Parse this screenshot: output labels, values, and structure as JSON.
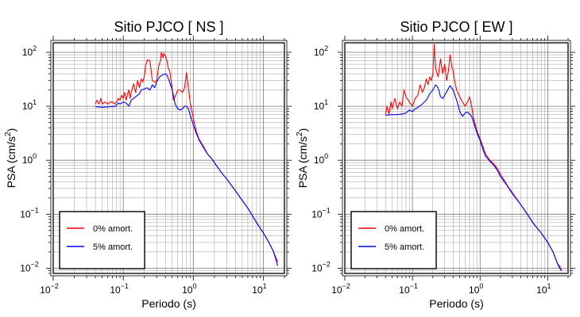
{
  "chart_data": [
    {
      "type": "line",
      "title": "Sitio PJCO [ NS ]",
      "xlabel": "Periodo (s)",
      "ylabel_main": "PSA (cm/s",
      "ylabel_sup": "2",
      "ylabel_tail": ")",
      "xscale": "log",
      "yscale": "log",
      "xlim": [
        0.01,
        20
      ],
      "ylim": [
        0.008,
        150
      ],
      "grid": true,
      "legend_position": "bottom-left",
      "x_ticks": [
        {
          "base": "10",
          "exp": "−2"
        },
        {
          "base": "10",
          "exp": "−1"
        },
        {
          "base": "10",
          "exp": "0"
        },
        {
          "base": "10",
          "exp": "1"
        }
      ],
      "y_ticks": [
        {
          "base": "10",
          "exp": "−2"
        },
        {
          "base": "10",
          "exp": "−1"
        },
        {
          "base": "10",
          "exp": "0"
        },
        {
          "base": "10",
          "exp": "1"
        },
        {
          "base": "10",
          "exp": "2"
        }
      ],
      "series": [
        {
          "name": "0% amort.",
          "color": "#ff0000",
          "points": [
            [
              0.04,
              11
            ],
            [
              0.042,
              13
            ],
            [
              0.045,
              11
            ],
            [
              0.048,
              14
            ],
            [
              0.05,
              11
            ],
            [
              0.055,
              12
            ],
            [
              0.06,
              11
            ],
            [
              0.065,
              12
            ],
            [
              0.07,
              12
            ],
            [
              0.075,
              11
            ],
            [
              0.08,
              12
            ],
            [
              0.085,
              14
            ],
            [
              0.09,
              13
            ],
            [
              0.095,
              16
            ],
            [
              0.1,
              14
            ],
            [
              0.105,
              18
            ],
            [
              0.11,
              13
            ],
            [
              0.115,
              17
            ],
            [
              0.12,
              20
            ],
            [
              0.125,
              14
            ],
            [
              0.13,
              18
            ],
            [
              0.14,
              26
            ],
            [
              0.15,
              18
            ],
            [
              0.16,
              30
            ],
            [
              0.17,
              22
            ],
            [
              0.18,
              32
            ],
            [
              0.19,
              28
            ],
            [
              0.2,
              36
            ],
            [
              0.21,
              58
            ],
            [
              0.22,
              72
            ],
            [
              0.24,
              70
            ],
            [
              0.25,
              45
            ],
            [
              0.26,
              30
            ],
            [
              0.28,
              28
            ],
            [
              0.3,
              30
            ],
            [
              0.32,
              55
            ],
            [
              0.34,
              70
            ],
            [
              0.35,
              100
            ],
            [
              0.37,
              80
            ],
            [
              0.38,
              95
            ],
            [
              0.4,
              85
            ],
            [
              0.42,
              70
            ],
            [
              0.44,
              50
            ],
            [
              0.46,
              45
            ],
            [
              0.48,
              30
            ],
            [
              0.5,
              20
            ],
            [
              0.52,
              13
            ],
            [
              0.55,
              15
            ],
            [
              0.6,
              20
            ],
            [
              0.65,
              20
            ],
            [
              0.7,
              18
            ],
            [
              0.75,
              22
            ],
            [
              0.8,
              42
            ],
            [
              0.85,
              22
            ],
            [
              0.9,
              12
            ],
            [
              1.0,
              6
            ],
            [
              1.1,
              3.5
            ],
            [
              1.2,
              2.5
            ],
            [
              1.4,
              1.8
            ],
            [
              1.6,
              1.3
            ],
            [
              1.8,
              1.1
            ],
            [
              2.0,
              0.9
            ],
            [
              2.5,
              0.6
            ],
            [
              3,
              0.45
            ],
            [
              4,
              0.27
            ],
            [
              5,
              0.18
            ],
            [
              6,
              0.13
            ],
            [
              8,
              0.07
            ],
            [
              10,
              0.045
            ],
            [
              12,
              0.03
            ],
            [
              14,
              0.02
            ],
            [
              15,
              0.016
            ],
            [
              16,
              0.013
            ]
          ]
        },
        {
          "name": "5% amort.",
          "color": "#0000ff",
          "points": [
            [
              0.04,
              9.8
            ],
            [
              0.05,
              9.6
            ],
            [
              0.06,
              9.7
            ],
            [
              0.07,
              10
            ],
            [
              0.075,
              9.8
            ],
            [
              0.08,
              10.5
            ],
            [
              0.085,
              11.5
            ],
            [
              0.09,
              11
            ],
            [
              0.1,
              12
            ],
            [
              0.11,
              11.5
            ],
            [
              0.12,
              10
            ],
            [
              0.13,
              13
            ],
            [
              0.14,
              14
            ],
            [
              0.15,
              15
            ],
            [
              0.16,
              16
            ],
            [
              0.17,
              17
            ],
            [
              0.18,
              20
            ],
            [
              0.2,
              21
            ],
            [
              0.22,
              22
            ],
            [
              0.24,
              20
            ],
            [
              0.26,
              25
            ],
            [
              0.28,
              22
            ],
            [
              0.3,
              28
            ],
            [
              0.33,
              35
            ],
            [
              0.36,
              38
            ],
            [
              0.4,
              40
            ],
            [
              0.42,
              38
            ],
            [
              0.45,
              30
            ],
            [
              0.5,
              20
            ],
            [
              0.52,
              16
            ],
            [
              0.55,
              11
            ],
            [
              0.6,
              9
            ],
            [
              0.65,
              8.5
            ],
            [
              0.7,
              9
            ],
            [
              0.75,
              10
            ],
            [
              0.8,
              10
            ],
            [
              0.85,
              9
            ],
            [
              0.9,
              7
            ],
            [
              1.0,
              4.5
            ],
            [
              1.1,
              3.2
            ],
            [
              1.2,
              2.4
            ],
            [
              1.4,
              1.7
            ],
            [
              1.6,
              1.3
            ],
            [
              1.8,
              1.1
            ],
            [
              2.0,
              0.9
            ],
            [
              2.5,
              0.6
            ],
            [
              3,
              0.45
            ],
            [
              4,
              0.27
            ],
            [
              5,
              0.18
            ],
            [
              6,
              0.13
            ],
            [
              8,
              0.07
            ],
            [
              10,
              0.045
            ],
            [
              12,
              0.03
            ],
            [
              14,
              0.02
            ],
            [
              15,
              0.015
            ],
            [
              16,
              0.011
            ]
          ]
        }
      ]
    },
    {
      "type": "line",
      "title": "Sitio PJCO [ EW ]",
      "xlabel": "Periodo (s)",
      "ylabel_main": "PSA (cm/s",
      "ylabel_sup": "2",
      "ylabel_tail": ")",
      "xscale": "log",
      "yscale": "log",
      "xlim": [
        0.01,
        20
      ],
      "ylim": [
        0.008,
        150
      ],
      "grid": true,
      "legend_position": "bottom-left",
      "x_ticks": [
        {
          "base": "10",
          "exp": "−2"
        },
        {
          "base": "10",
          "exp": "−1"
        },
        {
          "base": "10",
          "exp": "0"
        },
        {
          "base": "10",
          "exp": "1"
        }
      ],
      "y_ticks": [
        {
          "base": "10",
          "exp": "−2"
        },
        {
          "base": "10",
          "exp": "−1"
        },
        {
          "base": "10",
          "exp": "0"
        },
        {
          "base": "10",
          "exp": "1"
        },
        {
          "base": "10",
          "exp": "2"
        }
      ],
      "series": [
        {
          "name": "0% amort.",
          "color": "#ff0000",
          "points": [
            [
              0.04,
              7
            ],
            [
              0.042,
              10
            ],
            [
              0.045,
              7
            ],
            [
              0.048,
              12
            ],
            [
              0.05,
              9
            ],
            [
              0.055,
              14
            ],
            [
              0.06,
              9
            ],
            [
              0.065,
              12
            ],
            [
              0.07,
              10
            ],
            [
              0.075,
              20
            ],
            [
              0.08,
              15
            ],
            [
              0.09,
              12
            ],
            [
              0.1,
              10
            ],
            [
              0.11,
              14
            ],
            [
              0.12,
              16
            ],
            [
              0.13,
              25
            ],
            [
              0.14,
              18
            ],
            [
              0.15,
              22
            ],
            [
              0.16,
              32
            ],
            [
              0.17,
              25
            ],
            [
              0.18,
              35
            ],
            [
              0.19,
              30
            ],
            [
              0.2,
              40
            ],
            [
              0.21,
              140
            ],
            [
              0.22,
              50
            ],
            [
              0.24,
              35
            ],
            [
              0.26,
              75
            ],
            [
              0.28,
              40
            ],
            [
              0.3,
              60
            ],
            [
              0.32,
              30
            ],
            [
              0.34,
              45
            ],
            [
              0.36,
              90
            ],
            [
              0.38,
              55
            ],
            [
              0.4,
              45
            ],
            [
              0.42,
              30
            ],
            [
              0.45,
              20
            ],
            [
              0.5,
              15
            ],
            [
              0.55,
              12
            ],
            [
              0.6,
              10
            ],
            [
              0.65,
              12
            ],
            [
              0.7,
              15
            ],
            [
              0.75,
              10
            ],
            [
              0.8,
              6
            ],
            [
              0.9,
              3.5
            ],
            [
              1.0,
              2.5
            ],
            [
              1.1,
              1.8
            ],
            [
              1.2,
              1.3
            ],
            [
              1.4,
              1.0
            ],
            [
              1.6,
              0.85
            ],
            [
              1.8,
              0.7
            ],
            [
              2.0,
              0.55
            ],
            [
              2.5,
              0.35
            ],
            [
              3,
              0.25
            ],
            [
              4,
              0.15
            ],
            [
              5,
              0.1
            ],
            [
              6,
              0.07
            ],
            [
              8,
              0.045
            ],
            [
              10,
              0.03
            ],
            [
              12,
              0.02
            ],
            [
              14,
              0.012
            ],
            [
              15,
              0.011
            ],
            [
              16,
              0.009
            ]
          ]
        },
        {
          "name": "5% amort.",
          "color": "#0000ff",
          "points": [
            [
              0.04,
              6.8
            ],
            [
              0.05,
              7
            ],
            [
              0.06,
              7
            ],
            [
              0.07,
              7.2
            ],
            [
              0.08,
              7.5
            ],
            [
              0.09,
              8.5
            ],
            [
              0.1,
              8
            ],
            [
              0.11,
              9
            ],
            [
              0.12,
              9.5
            ],
            [
              0.14,
              11
            ],
            [
              0.16,
              13
            ],
            [
              0.18,
              17
            ],
            [
              0.2,
              20
            ],
            [
              0.22,
              25
            ],
            [
              0.24,
              22
            ],
            [
              0.26,
              15
            ],
            [
              0.28,
              14
            ],
            [
              0.3,
              16
            ],
            [
              0.33,
              20
            ],
            [
              0.36,
              24
            ],
            [
              0.4,
              20
            ],
            [
              0.45,
              13
            ],
            [
              0.5,
              8
            ],
            [
              0.55,
              6.5
            ],
            [
              0.6,
              7.5
            ],
            [
              0.65,
              7.8
            ],
            [
              0.7,
              7.2
            ],
            [
              0.75,
              6.5
            ],
            [
              0.8,
              5
            ],
            [
              0.9,
              3.2
            ],
            [
              1.0,
              2.3
            ],
            [
              1.1,
              1.6
            ],
            [
              1.2,
              1.2
            ],
            [
              1.4,
              0.95
            ],
            [
              1.6,
              0.8
            ],
            [
              1.8,
              0.65
            ],
            [
              2.0,
              0.5
            ],
            [
              2.5,
              0.34
            ],
            [
              3,
              0.24
            ],
            [
              4,
              0.15
            ],
            [
              5,
              0.1
            ],
            [
              6,
              0.07
            ],
            [
              8,
              0.045
            ],
            [
              10,
              0.03
            ],
            [
              12,
              0.02
            ],
            [
              14,
              0.012
            ],
            [
              15,
              0.01
            ],
            [
              16,
              0.009
            ]
          ]
        }
      ]
    }
  ]
}
